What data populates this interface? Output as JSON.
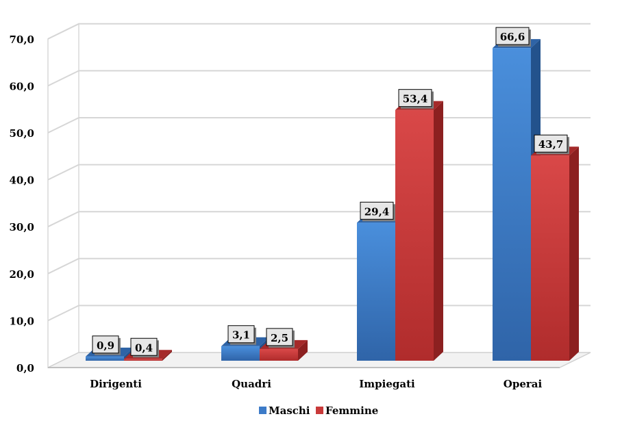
{
  "chart_data": {
    "type": "bar",
    "categories": [
      "Dirigenti",
      "Quadri",
      "Impiegati",
      "Operai"
    ],
    "series": [
      {
        "name": "Maschi",
        "values": [
          0.9,
          3.1,
          29.4,
          66.6
        ],
        "labels": [
          "0,9",
          "3,1",
          "29,4",
          "66,6"
        ]
      },
      {
        "name": "Femmine",
        "values": [
          0.4,
          2.5,
          53.4,
          43.7
        ],
        "labels": [
          "0,4",
          "2,5",
          "53,4",
          "43,7"
        ]
      }
    ],
    "yticks": [
      "0,0",
      "10,0",
      "20,0",
      "30,0",
      "40,0",
      "50,0",
      "60,0",
      "70,0"
    ],
    "ylim": [
      0,
      70
    ],
    "grid": true,
    "legend": "bottom",
    "three_d": true,
    "colors": {
      "Maschi": "#3c7bc8",
      "Femmine": "#c93a3a"
    }
  }
}
